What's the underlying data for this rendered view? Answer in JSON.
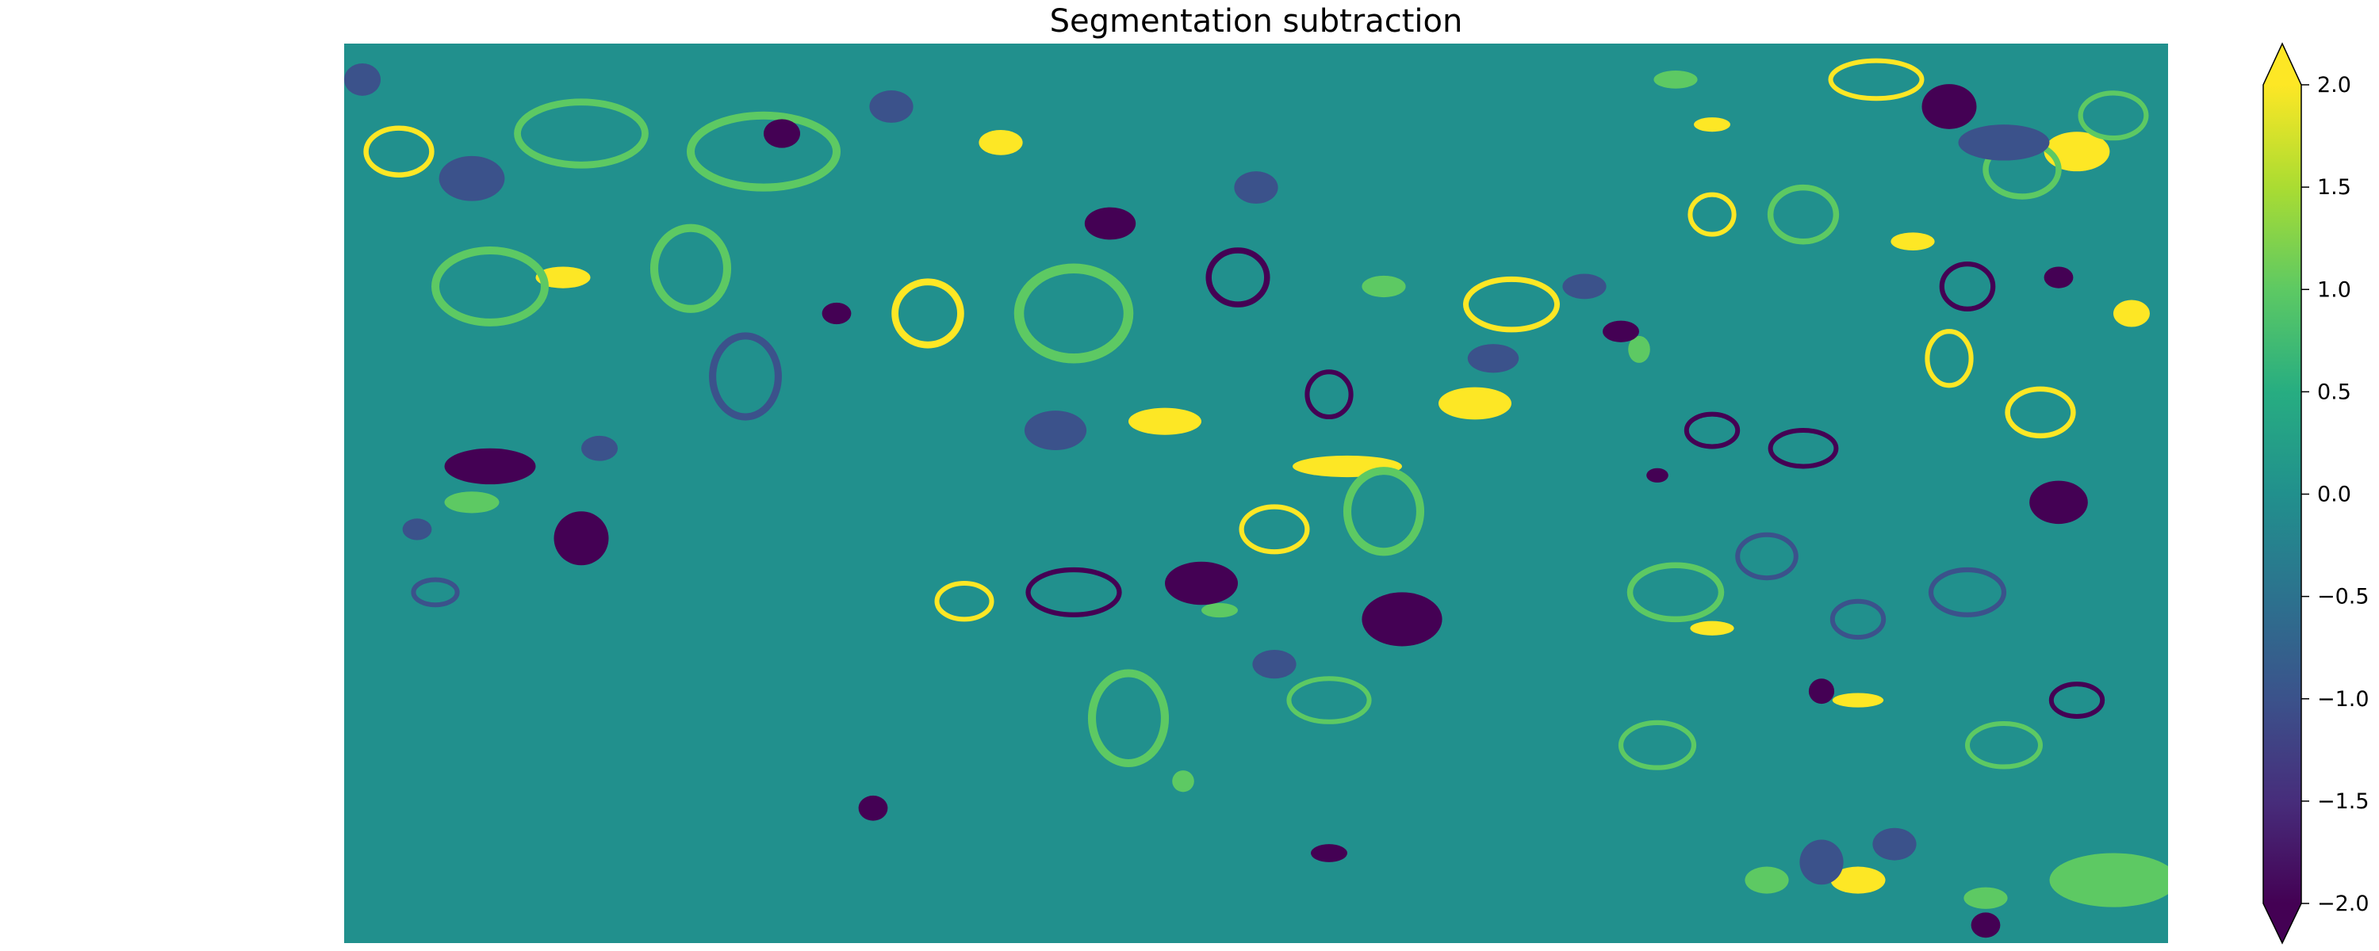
{
  "chart_data": {
    "type": "heatmap",
    "title": "Segmentation subtraction",
    "xlabel": "",
    "ylabel": "",
    "axes_visible": false,
    "colormap": "viridis",
    "colorbar": {
      "position": "right",
      "extend": "both",
      "vmin": -2.0,
      "vmax": 2.0,
      "ticks": [
        2.0,
        1.5,
        1.0,
        0.5,
        0.0,
        -0.5,
        -1.0,
        -1.5,
        -2.0
      ],
      "tick_labels": [
        "2.0",
        "1.5",
        "1.0",
        "0.5",
        "0.0",
        "−0.5",
        "−1.0",
        "−1.5",
        "−2.0"
      ]
    },
    "background_value": 0,
    "value_colors": {
      "-2": "#440154",
      "-1": "#3b528b",
      "0": "#21908d",
      "1": "#5dc963",
      "2": "#fde725"
    },
    "regions": [
      {
        "kind": "blob",
        "value": 2,
        "cx": 0.62,
        "cy": 0.4,
        "rx": 0.02,
        "ry": 0.018
      },
      {
        "kind": "blob",
        "value": 2,
        "cx": 0.55,
        "cy": 0.47,
        "rx": 0.03,
        "ry": 0.012
      },
      {
        "kind": "blob",
        "value": 2,
        "cx": 0.86,
        "cy": 0.22,
        "rx": 0.012,
        "ry": 0.01
      },
      {
        "kind": "blob",
        "value": 2,
        "cx": 0.75,
        "cy": 0.09,
        "rx": 0.01,
        "ry": 0.008
      },
      {
        "kind": "blob",
        "value": 2,
        "cx": 0.95,
        "cy": 0.12,
        "rx": 0.018,
        "ry": 0.022
      },
      {
        "kind": "blob",
        "value": 2,
        "cx": 0.12,
        "cy": 0.26,
        "rx": 0.015,
        "ry": 0.012
      },
      {
        "kind": "blob",
        "value": 2,
        "cx": 0.83,
        "cy": 0.93,
        "rx": 0.015,
        "ry": 0.015
      },
      {
        "kind": "blob",
        "value": 2,
        "cx": 0.75,
        "cy": 0.65,
        "rx": 0.012,
        "ry": 0.008
      },
      {
        "kind": "blob",
        "value": 2,
        "cx": 0.83,
        "cy": 0.73,
        "rx": 0.014,
        "ry": 0.008
      },
      {
        "kind": "blob",
        "value": 2,
        "cx": 0.45,
        "cy": 0.42,
        "rx": 0.02,
        "ry": 0.015
      },
      {
        "kind": "blob",
        "value": 2,
        "cx": 0.98,
        "cy": 0.3,
        "rx": 0.01,
        "ry": 0.015
      },
      {
        "kind": "blob",
        "value": 2,
        "cx": 0.36,
        "cy": 0.11,
        "rx": 0.012,
        "ry": 0.014
      },
      {
        "kind": "ring",
        "value": 2,
        "cx": 0.03,
        "cy": 0.12,
        "rx": 0.018,
        "ry": 0.026
      },
      {
        "kind": "ring",
        "value": 2,
        "cx": 0.84,
        "cy": 0.04,
        "rx": 0.025,
        "ry": 0.021
      },
      {
        "kind": "ring",
        "value": 2,
        "cx": 0.64,
        "cy": 0.29,
        "rx": 0.025,
        "ry": 0.028
      },
      {
        "kind": "ring",
        "value": 2,
        "cx": 0.93,
        "cy": 0.41,
        "rx": 0.018,
        "ry": 0.026
      },
      {
        "kind": "ring",
        "value": 2,
        "cx": 0.32,
        "cy": 0.3,
        "rx": 0.018,
        "ry": 0.035
      },
      {
        "kind": "ring",
        "value": 2,
        "cx": 0.88,
        "cy": 0.35,
        "rx": 0.012,
        "ry": 0.03
      },
      {
        "kind": "ring",
        "value": 2,
        "cx": 0.75,
        "cy": 0.19,
        "rx": 0.012,
        "ry": 0.022
      },
      {
        "kind": "ring",
        "value": 2,
        "cx": 0.51,
        "cy": 0.54,
        "rx": 0.018,
        "ry": 0.025
      },
      {
        "kind": "ring",
        "value": 2,
        "cx": 0.34,
        "cy": 0.62,
        "rx": 0.015,
        "ry": 0.02
      },
      {
        "kind": "ring",
        "value": 1,
        "cx": 0.08,
        "cy": 0.27,
        "rx": 0.03,
        "ry": 0.04
      },
      {
        "kind": "ring",
        "value": 1,
        "cx": 0.19,
        "cy": 0.25,
        "rx": 0.02,
        "ry": 0.045
      },
      {
        "kind": "ring",
        "value": 1,
        "cx": 0.23,
        "cy": 0.12,
        "rx": 0.04,
        "ry": 0.04
      },
      {
        "kind": "ring",
        "value": 1,
        "cx": 0.13,
        "cy": 0.1,
        "rx": 0.035,
        "ry": 0.035
      },
      {
        "kind": "ring",
        "value": 1,
        "cx": 0.4,
        "cy": 0.3,
        "rx": 0.03,
        "ry": 0.05
      },
      {
        "kind": "ring",
        "value": 1,
        "cx": 0.57,
        "cy": 0.52,
        "rx": 0.02,
        "ry": 0.045
      },
      {
        "kind": "ring",
        "value": 1,
        "cx": 0.73,
        "cy": 0.61,
        "rx": 0.025,
        "ry": 0.03
      },
      {
        "kind": "ring",
        "value": 1,
        "cx": 0.8,
        "cy": 0.19,
        "rx": 0.018,
        "ry": 0.03
      },
      {
        "kind": "ring",
        "value": 1,
        "cx": 0.92,
        "cy": 0.14,
        "rx": 0.02,
        "ry": 0.03
      },
      {
        "kind": "ring",
        "value": 1,
        "cx": 0.97,
        "cy": 0.08,
        "rx": 0.018,
        "ry": 0.025
      },
      {
        "kind": "ring",
        "value": 1,
        "cx": 0.43,
        "cy": 0.75,
        "rx": 0.02,
        "ry": 0.05
      },
      {
        "kind": "ring",
        "value": 1,
        "cx": 0.72,
        "cy": 0.78,
        "rx": 0.02,
        "ry": 0.025
      },
      {
        "kind": "ring",
        "value": 1,
        "cx": 0.54,
        "cy": 0.73,
        "rx": 0.022,
        "ry": 0.024
      },
      {
        "kind": "ring",
        "value": 1,
        "cx": 0.91,
        "cy": 0.78,
        "rx": 0.02,
        "ry": 0.024
      },
      {
        "kind": "blob",
        "value": 1,
        "cx": 0.07,
        "cy": 0.51,
        "rx": 0.015,
        "ry": 0.012
      },
      {
        "kind": "blob",
        "value": 1,
        "cx": 0.97,
        "cy": 0.93,
        "rx": 0.035,
        "ry": 0.03
      },
      {
        "kind": "blob",
        "value": 1,
        "cx": 0.9,
        "cy": 0.95,
        "rx": 0.012,
        "ry": 0.012
      },
      {
        "kind": "blob",
        "value": 1,
        "cx": 0.73,
        "cy": 0.04,
        "rx": 0.012,
        "ry": 0.01
      },
      {
        "kind": "blob",
        "value": 1,
        "cx": 0.57,
        "cy": 0.27,
        "rx": 0.012,
        "ry": 0.012
      },
      {
        "kind": "blob",
        "value": 1,
        "cx": 0.71,
        "cy": 0.34,
        "rx": 0.006,
        "ry": 0.015
      },
      {
        "kind": "blob",
        "value": 1,
        "cx": 0.46,
        "cy": 0.82,
        "rx": 0.006,
        "ry": 0.012
      },
      {
        "kind": "blob",
        "value": 1,
        "cx": 0.48,
        "cy": 0.63,
        "rx": 0.01,
        "ry": 0.008
      },
      {
        "kind": "blob",
        "value": 1,
        "cx": 0.78,
        "cy": 0.93,
        "rx": 0.012,
        "ry": 0.015
      },
      {
        "kind": "blob",
        "value": -1,
        "cx": 0.07,
        "cy": 0.15,
        "rx": 0.018,
        "ry": 0.025
      },
      {
        "kind": "blob",
        "value": -1,
        "cx": 0.39,
        "cy": 0.43,
        "rx": 0.017,
        "ry": 0.022
      },
      {
        "kind": "blob",
        "value": -1,
        "cx": 0.91,
        "cy": 0.11,
        "rx": 0.025,
        "ry": 0.02
      },
      {
        "kind": "blob",
        "value": -1,
        "cx": 0.5,
        "cy": 0.16,
        "rx": 0.012,
        "ry": 0.018
      },
      {
        "kind": "blob",
        "value": -1,
        "cx": 0.81,
        "cy": 0.91,
        "rx": 0.012,
        "ry": 0.025
      },
      {
        "kind": "blob",
        "value": -1,
        "cx": 0.85,
        "cy": 0.89,
        "rx": 0.012,
        "ry": 0.018
      },
      {
        "kind": "blob",
        "value": -1,
        "cx": 0.51,
        "cy": 0.69,
        "rx": 0.012,
        "ry": 0.016
      },
      {
        "kind": "blob",
        "value": -1,
        "cx": 0.63,
        "cy": 0.35,
        "rx": 0.014,
        "ry": 0.016
      },
      {
        "kind": "blob",
        "value": -1,
        "cx": 0.68,
        "cy": 0.27,
        "rx": 0.012,
        "ry": 0.014
      },
      {
        "kind": "blob",
        "value": -1,
        "cx": 0.14,
        "cy": 0.45,
        "rx": 0.01,
        "ry": 0.014
      },
      {
        "kind": "blob",
        "value": -1,
        "cx": 0.04,
        "cy": 0.54,
        "rx": 0.008,
        "ry": 0.012
      },
      {
        "kind": "blob",
        "value": -1,
        "cx": 0.01,
        "cy": 0.04,
        "rx": 0.01,
        "ry": 0.018
      },
      {
        "kind": "blob",
        "value": -1,
        "cx": 0.3,
        "cy": 0.07,
        "rx": 0.012,
        "ry": 0.018
      },
      {
        "kind": "blob",
        "value": -2,
        "cx": 0.08,
        "cy": 0.47,
        "rx": 0.025,
        "ry": 0.02
      },
      {
        "kind": "blob",
        "value": -2,
        "cx": 0.58,
        "cy": 0.64,
        "rx": 0.022,
        "ry": 0.03
      },
      {
        "kind": "blob",
        "value": -2,
        "cx": 0.47,
        "cy": 0.6,
        "rx": 0.02,
        "ry": 0.024
      },
      {
        "kind": "blob",
        "value": -2,
        "cx": 0.88,
        "cy": 0.07,
        "rx": 0.015,
        "ry": 0.025
      },
      {
        "kind": "blob",
        "value": -2,
        "cx": 0.94,
        "cy": 0.51,
        "rx": 0.016,
        "ry": 0.024
      },
      {
        "kind": "blob",
        "value": -2,
        "cx": 0.24,
        "cy": 0.1,
        "rx": 0.01,
        "ry": 0.016
      },
      {
        "kind": "blob",
        "value": -2,
        "cx": 0.42,
        "cy": 0.2,
        "rx": 0.014,
        "ry": 0.018
      },
      {
        "kind": "blob",
        "value": -2,
        "cx": 0.27,
        "cy": 0.3,
        "rx": 0.008,
        "ry": 0.012
      },
      {
        "kind": "blob",
        "value": -2,
        "cx": 0.7,
        "cy": 0.32,
        "rx": 0.01,
        "ry": 0.012
      },
      {
        "kind": "blob",
        "value": -2,
        "cx": 0.94,
        "cy": 0.26,
        "rx": 0.008,
        "ry": 0.012
      },
      {
        "kind": "blob",
        "value": -2,
        "cx": 0.72,
        "cy": 0.48,
        "rx": 0.006,
        "ry": 0.008
      },
      {
        "kind": "blob",
        "value": -2,
        "cx": 0.29,
        "cy": 0.85,
        "rx": 0.008,
        "ry": 0.014
      },
      {
        "kind": "blob",
        "value": -2,
        "cx": 0.81,
        "cy": 0.72,
        "rx": 0.007,
        "ry": 0.014
      },
      {
        "kind": "blob",
        "value": -2,
        "cx": 0.54,
        "cy": 0.9,
        "rx": 0.01,
        "ry": 0.01
      },
      {
        "kind": "blob",
        "value": -2,
        "cx": 0.13,
        "cy": 0.55,
        "rx": 0.015,
        "ry": 0.03
      },
      {
        "kind": "blob",
        "value": -2,
        "cx": 0.9,
        "cy": 0.98,
        "rx": 0.008,
        "ry": 0.014
      },
      {
        "kind": "ring",
        "value": -2,
        "cx": 0.49,
        "cy": 0.26,
        "rx": 0.016,
        "ry": 0.03
      },
      {
        "kind": "ring",
        "value": -2,
        "cx": 0.4,
        "cy": 0.61,
        "rx": 0.025,
        "ry": 0.025
      },
      {
        "kind": "ring",
        "value": -2,
        "cx": 0.75,
        "cy": 0.43,
        "rx": 0.014,
        "ry": 0.018
      },
      {
        "kind": "ring",
        "value": -2,
        "cx": 0.8,
        "cy": 0.45,
        "rx": 0.018,
        "ry": 0.02
      },
      {
        "kind": "ring",
        "value": -2,
        "cx": 0.89,
        "cy": 0.27,
        "rx": 0.014,
        "ry": 0.025
      },
      {
        "kind": "ring",
        "value": -2,
        "cx": 0.95,
        "cy": 0.73,
        "rx": 0.014,
        "ry": 0.018
      },
      {
        "kind": "ring",
        "value": -2,
        "cx": 0.54,
        "cy": 0.39,
        "rx": 0.012,
        "ry": 0.025
      },
      {
        "kind": "ring",
        "value": -1,
        "cx": 0.22,
        "cy": 0.37,
        "rx": 0.018,
        "ry": 0.045
      },
      {
        "kind": "ring",
        "value": -1,
        "cx": 0.89,
        "cy": 0.61,
        "rx": 0.02,
        "ry": 0.025
      },
      {
        "kind": "ring",
        "value": -1,
        "cx": 0.78,
        "cy": 0.57,
        "rx": 0.016,
        "ry": 0.024
      },
      {
        "kind": "ring",
        "value": -1,
        "cx": 0.83,
        "cy": 0.64,
        "rx": 0.014,
        "ry": 0.02
      },
      {
        "kind": "ring",
        "value": -1,
        "cx": 0.05,
        "cy": 0.61,
        "rx": 0.012,
        "ry": 0.014
      }
    ]
  }
}
